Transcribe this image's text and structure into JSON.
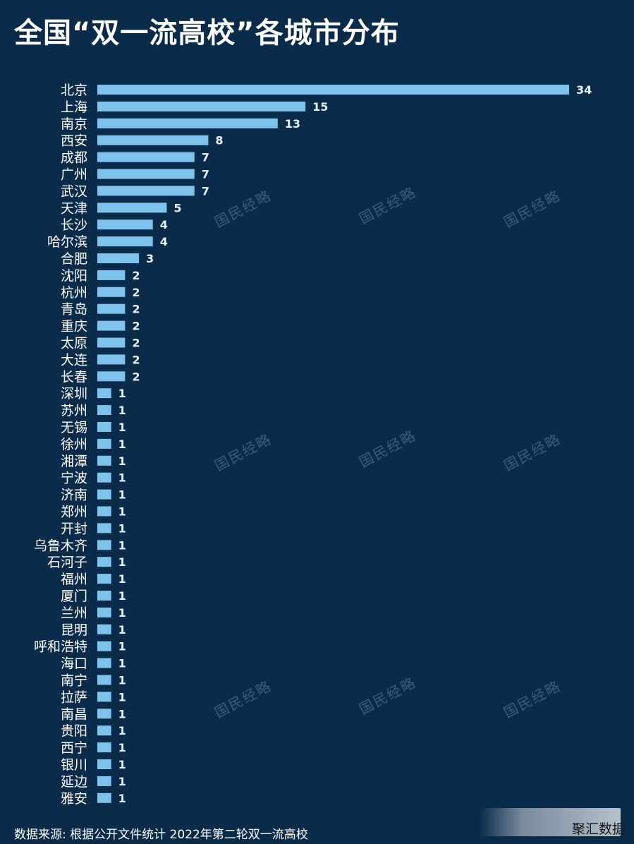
{
  "title": "全国“双一流高校”各城市分布",
  "source": "数据来源: 根据公开文件统计 2022年第二轮双一流高校",
  "brand": "聚汇数据",
  "watermark_text": "国民经略",
  "colors": {
    "background": "#0b2b4b",
    "bar": "#7dc3ec",
    "text": "#ffffff"
  },
  "chart_data": {
    "type": "bar",
    "orientation": "horizontal",
    "title": "全国“双一流高校”各城市分布",
    "xlabel": "",
    "ylabel": "",
    "grid": false,
    "xlim": [
      0,
      34
    ],
    "categories": [
      "北京",
      "上海",
      "南京",
      "西安",
      "成都",
      "广州",
      "武汉",
      "天津",
      "长沙",
      "哈尔滨",
      "合肥",
      "沈阳",
      "杭州",
      "青岛",
      "重庆",
      "太原",
      "大连",
      "长春",
      "深圳",
      "苏州",
      "无锡",
      "徐州",
      "湘潭",
      "宁波",
      "济南",
      "郑州",
      "开封",
      "乌鲁木齐",
      "石河子",
      "福州",
      "厦门",
      "兰州",
      "昆明",
      "呼和浩特",
      "海口",
      "南宁",
      "拉萨",
      "南昌",
      "贵阳",
      "西宁",
      "银川",
      "延边",
      "雅安"
    ],
    "values": [
      34,
      15,
      13,
      8,
      7,
      7,
      7,
      5,
      4,
      4,
      3,
      2,
      2,
      2,
      2,
      2,
      2,
      2,
      1,
      1,
      1,
      1,
      1,
      1,
      1,
      1,
      1,
      1,
      1,
      1,
      1,
      1,
      1,
      1,
      1,
      1,
      1,
      1,
      1,
      1,
      1,
      1,
      1
    ]
  }
}
